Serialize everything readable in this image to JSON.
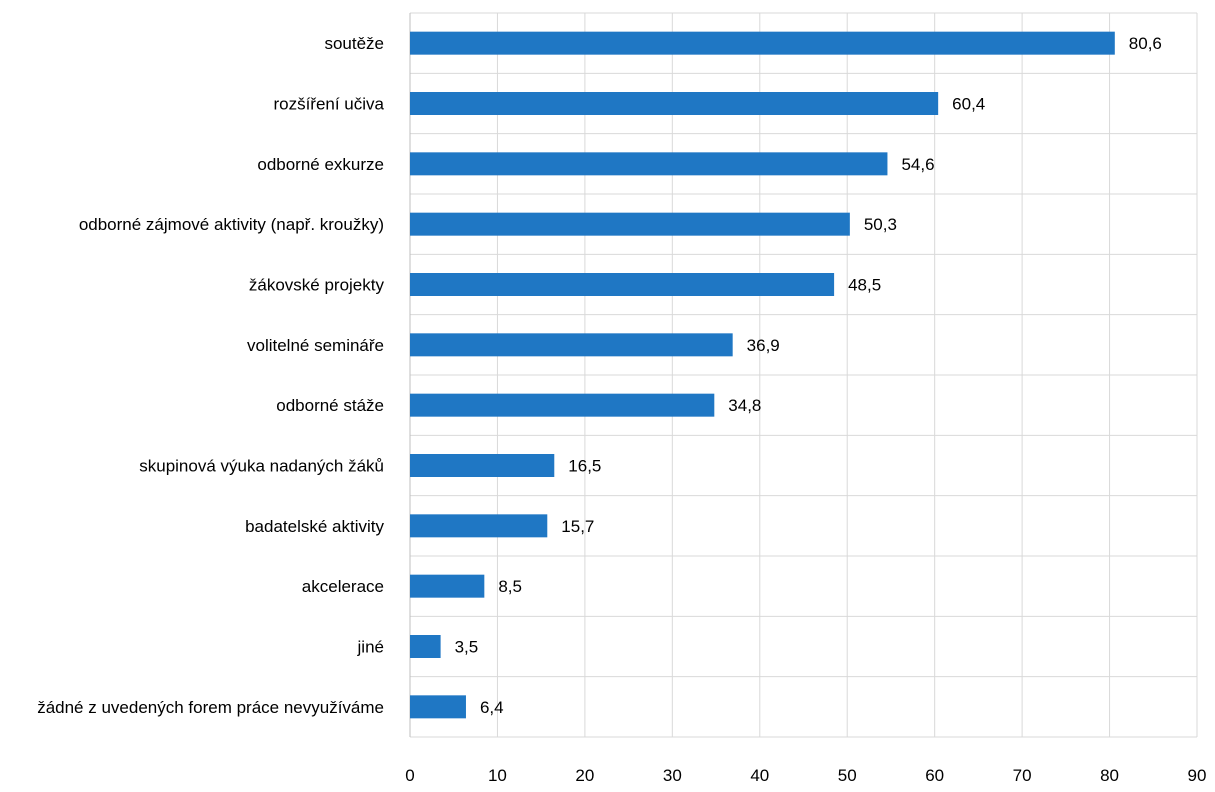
{
  "chart_data": {
    "type": "bar",
    "orientation": "horizontal",
    "categories": [
      "soutěže",
      "rozšíření učiva",
      "odborné exkurze",
      "odborné zájmové aktivity (např. kroužky)",
      "žákovské projekty",
      "volitelné semináře",
      "odborné stáže",
      "skupinová výuka nadaných žáků",
      "badatelské aktivity",
      "akcelerace",
      "jiné",
      "žádné z uvedených forem práce nevyužíváme"
    ],
    "values": [
      80.6,
      60.4,
      54.6,
      50.3,
      48.5,
      36.9,
      34.8,
      16.5,
      15.7,
      8.5,
      3.5,
      6.4
    ],
    "value_labels": [
      "80,6",
      "60,4",
      "54,6",
      "50,3",
      "48,5",
      "36,9",
      "34,8",
      "16,5",
      "15,7",
      "8,5",
      "3,5",
      "6,4"
    ],
    "xlim": [
      0,
      90
    ],
    "xticks": [
      0,
      10,
      20,
      30,
      40,
      50,
      60,
      70,
      80,
      90
    ],
    "title": "",
    "xlabel": "",
    "ylabel": "",
    "grid": "vertical",
    "legend": "none",
    "bar_color": "#1f77c4",
    "grid_color": "#d9d9d9"
  }
}
